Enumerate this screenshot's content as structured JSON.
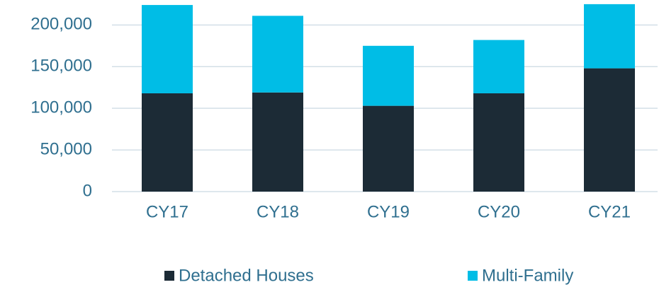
{
  "chart_data": {
    "type": "stacked_bar",
    "categories": [
      "CY17",
      "CY18",
      "CY19",
      "CY20",
      "CY21"
    ],
    "series": [
      {
        "name": "Detached Houses",
        "color": "#1c2b36",
        "values": [
          118000,
          119000,
          103000,
          118000,
          148000
        ]
      },
      {
        "name": "Multi-Family",
        "color": "#00bde6",
        "values": [
          106000,
          92000,
          72000,
          64000,
          77000
        ]
      }
    ],
    "ylim": [
      0,
      230000
    ],
    "yticks": [
      0,
      {
        "value": 50000,
        "label": "50,000"
      },
      {
        "value": 100000,
        "label": "100,000"
      },
      {
        "value": 150000,
        "label": "150,000"
      },
      {
        "value": 200000,
        "label": "200,000"
      }
    ],
    "grid": true,
    "legend": "bottom"
  }
}
